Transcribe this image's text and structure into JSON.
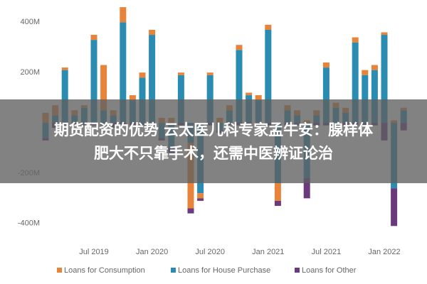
{
  "chart_data": {
    "type": "stacked-bar",
    "overlay_title": [
      "期货配资的优势 云太医儿科专家孟牛安：腺样体",
      "肥大不只靠手术，还需中医辨证论治"
    ],
    "categories": [
      null,
      null,
      null,
      null,
      null,
      "Jul 2019",
      null,
      null,
      null,
      null,
      null,
      "Jan 2020",
      null,
      null,
      null,
      null,
      null,
      "Jul 2020",
      null,
      null,
      null,
      null,
      null,
      "Jan 2021",
      null,
      null,
      null,
      null,
      null,
      "Jul 2021",
      null,
      null,
      null,
      null,
      null,
      "Jan 2022",
      null,
      null
    ],
    "series": [
      {
        "name": "Loans for Consumption",
        "color": "#e8833a",
        "values": [
          40,
          40,
          10,
          20,
          10,
          20,
          180,
          20,
          60,
          20,
          20,
          20,
          20,
          20,
          10,
          -260,
          -20,
          10,
          20,
          20,
          20,
          10,
          20,
          20,
          -70,
          20,
          20,
          10,
          20,
          20,
          20,
          20,
          20,
          20,
          20,
          10,
          10,
          10
        ]
      },
      {
        "name": "Loans for House Purchase",
        "color": "#2a8cb0",
        "values": [
          -60,
          30,
          210,
          30,
          60,
          330,
          50,
          30,
          400,
          90,
          180,
          350,
          -60,
          -100,
          190,
          -80,
          -280,
          190,
          -30,
          50,
          290,
          110,
          90,
          370,
          -240,
          50,
          30,
          -220,
          30,
          220,
          60,
          40,
          320,
          190,
          210,
          350,
          -260,
          50
        ]
      },
      {
        "name": "Loans for Other",
        "color": "#6b3a7d",
        "values": [
          -10,
          -20,
          -10,
          -10,
          -10,
          -10,
          -10,
          -20,
          -10,
          -10,
          -10,
          -10,
          -10,
          -20,
          -10,
          -20,
          -10,
          -10,
          -10,
          -10,
          -10,
          -10,
          -10,
          -10,
          -20,
          -10,
          -10,
          -80,
          -10,
          -10,
          -20,
          -10,
          -10,
          -10,
          -10,
          -70,
          -150,
          -30
        ]
      }
    ],
    "ylim": [
      -460,
      480
    ],
    "yticks": [
      {
        "value": -400,
        "label": "-400M"
      },
      {
        "value": -200,
        "label": "-200M"
      },
      {
        "value": 200,
        "label": "200M"
      },
      {
        "value": 400,
        "label": "400M"
      }
    ]
  }
}
